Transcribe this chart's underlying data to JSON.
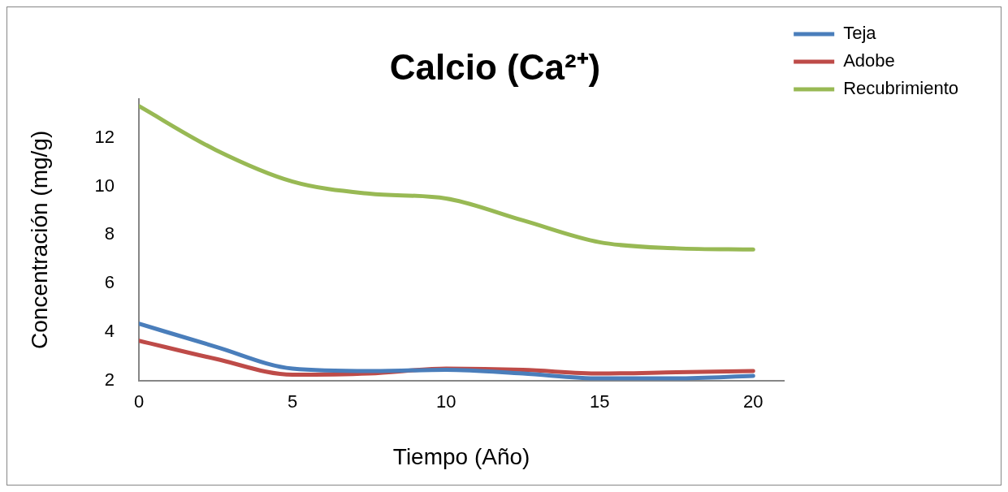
{
  "chart_data": {
    "type": "line",
    "title": "Calcio (Ca²⁺)",
    "xlabel": "Tiempo (Año)",
    "ylabel": "Concentración (mg/g)",
    "x": [
      0,
      2.5,
      5,
      7.5,
      10,
      12.5,
      15,
      17.5,
      20
    ],
    "series": [
      {
        "name": "Teja",
        "color": "#4a7ebb",
        "values": [
          4.35,
          3.4,
          2.5,
          2.4,
          2.45,
          2.3,
          2.1,
          2.1,
          2.2
        ]
      },
      {
        "name": "Adobe",
        "color": "#be4b48",
        "values": [
          3.65,
          2.9,
          2.25,
          2.3,
          2.5,
          2.45,
          2.3,
          2.35,
          2.4
        ]
      },
      {
        "name": "Recubrimiento",
        "color": "#98b954",
        "values": [
          13.3,
          11.5,
          10.2,
          9.7,
          9.5,
          8.6,
          7.7,
          7.45,
          7.4
        ]
      }
    ],
    "xlim": [
      0,
      21
    ],
    "xticks": [
      0,
      5,
      10,
      15,
      20
    ],
    "ylim": [
      2,
      13.6
    ],
    "yticks": [
      2,
      4,
      6,
      8,
      10,
      12
    ],
    "grid": false,
    "legend": "right",
    "marker": "none",
    "line_style": "solid"
  }
}
